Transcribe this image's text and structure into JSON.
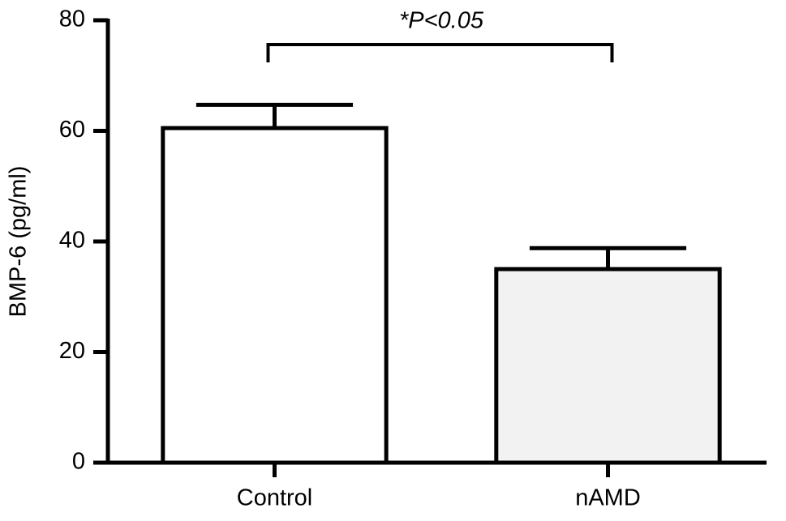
{
  "chart_data": {
    "type": "bar",
    "ylabel": "BMP-6 (pg/ml)",
    "categories": [
      "Control",
      "nAMD"
    ],
    "values": [
      60.5,
      35
    ],
    "errors": [
      4.2,
      3.8
    ],
    "colors": [
      "#ffffff",
      "#f2f2f2"
    ],
    "ylim": [
      0,
      80
    ],
    "yticks": [
      0,
      20,
      40,
      60,
      80
    ],
    "annotation": "*P<0.05"
  }
}
